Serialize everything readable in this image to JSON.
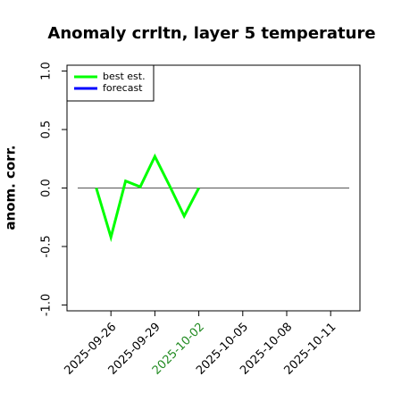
{
  "chart_data": {
    "type": "line",
    "title": "Anomaly crrltn, layer 5 temperature",
    "y_label": "anom. corr.",
    "x": [
      "2025-09-25",
      "2025-09-26",
      "2025-09-27",
      "2025-09-28",
      "2025-09-29",
      "2025-09-30",
      "2025-10-01",
      "2025-10-02"
    ],
    "series": [
      {
        "name": "best est.",
        "color": "#00ff00",
        "values": [
          0.0,
          -0.42,
          0.06,
          0.01,
          0.27,
          0.02,
          -0.24,
          0.0
        ]
      },
      {
        "name": "forecast",
        "color": "#0000ff",
        "values": [
          null,
          null,
          null,
          null,
          null,
          null,
          null,
          null
        ]
      }
    ],
    "xlim": [
      "2025-09-23",
      "2025-10-13"
    ],
    "xticks": [
      "2025-09-26",
      "2025-09-29",
      "2025-10-02",
      "2025-10-05",
      "2025-10-08",
      "2025-10-11"
    ],
    "xtick_highlight": "2025-10-02",
    "xtick_highlight_color": "#228b22",
    "ylim": [
      -1.05,
      1.05
    ],
    "yticks": [
      {
        "value": -1.0,
        "label": "-1.0"
      },
      {
        "value": -0.5,
        "label": "-0.5"
      },
      {
        "value": 0.0,
        "label": "0.0"
      },
      {
        "value": 0.5,
        "label": "0.5"
      },
      {
        "value": 1.0,
        "label": "1.0"
      }
    ],
    "reference_line": 0,
    "legend": "topleft"
  }
}
